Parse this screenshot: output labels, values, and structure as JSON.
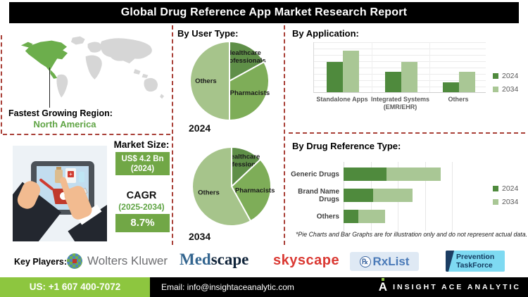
{
  "title": "Global Drug Reference App Market Research Report",
  "left": {
    "region_label": "Fastest Growing Region:",
    "region_value": "North America",
    "market_size_label": "Market Size:",
    "market_size_value": "US$ 4.2 Bn",
    "market_size_year": "(2024)",
    "cagr_label": "CAGR",
    "cagr_period": "(2025-2034)",
    "cagr_value": "8.7%"
  },
  "sections": {
    "user_type_heading": "By User Type:",
    "application_heading": "By Application:",
    "drug_heading": "By Drug Reference Type:",
    "footnote": "*Pie Charts and Bar Graphs are for illustration only and do not represent actual data."
  },
  "chart_data": [
    {
      "type": "pie",
      "year": "2024",
      "title": "By User Type - 2024",
      "labels": [
        "Healthcare\nProfessionals",
        "Pharmacists",
        "Others"
      ],
      "values": [
        17,
        33,
        50
      ],
      "colors": [
        "#5f8f48",
        "#7ead58",
        "#a6c48b"
      ]
    },
    {
      "type": "pie",
      "year": "2034",
      "title": "By User Type - 2034",
      "labels": [
        "Healthcare\nProfessionals",
        "Pharmacists",
        "Others"
      ],
      "values": [
        13,
        29,
        58
      ],
      "colors": [
        "#5f8f48",
        "#7ead58",
        "#a6c48b"
      ]
    },
    {
      "type": "bar",
      "title": "By Application",
      "categories": [
        "Standalone Apps",
        "Integrated Systems\n(EMR/EHR)",
        "Others"
      ],
      "series": [
        {
          "name": "2024",
          "values": [
            60,
            40,
            19
          ],
          "color": "#4f8a3d"
        },
        {
          "name": "2034",
          "values": [
            82,
            60,
            40
          ],
          "color": "#a9c795"
        }
      ],
      "ylim": [
        0,
        100
      ],
      "grid": true,
      "legend_position": "right"
    },
    {
      "type": "bar",
      "orientation": "horizontal",
      "stacked": true,
      "title": "By Drug Reference Type",
      "categories": [
        "Generic Drugs",
        "Brand Name\nDrugs",
        "Others"
      ],
      "series": [
        {
          "name": "2024",
          "values": [
            38,
            26,
            13
          ],
          "color": "#4f8a3d"
        },
        {
          "name": "2034",
          "values": [
            48,
            35,
            24
          ],
          "color": "#a9c795"
        }
      ],
      "xlim": [
        0,
        100
      ],
      "grid": true,
      "legend_position": "right"
    }
  ],
  "key_players": {
    "label": "Key Players:",
    "items": [
      {
        "name": "Wolters Kluwer"
      },
      {
        "name": "Medscape",
        "part1": "Med",
        "part2": "scape"
      },
      {
        "name": "skyscape"
      },
      {
        "name": "RxList",
        "rx": "℞"
      },
      {
        "name": "Prevention TaskForce",
        "line1": "Prevention",
        "line2": "TaskForce"
      }
    ]
  },
  "footer": {
    "phone": "US: +1 607 400-7072",
    "email": "Email: info@insightaceanalytic.com",
    "logo_letter": "A",
    "brand": "INSIGHT ACE ANALYTIC"
  },
  "colors": {
    "accent_green": "#71a746",
    "lime_green": "#8dc63f",
    "na_green": "#5fa444",
    "map_gray": "#d6d6d6",
    "map_green": "#6cae4c",
    "dashed_red": "#a94038",
    "label_gray": "#595959"
  }
}
